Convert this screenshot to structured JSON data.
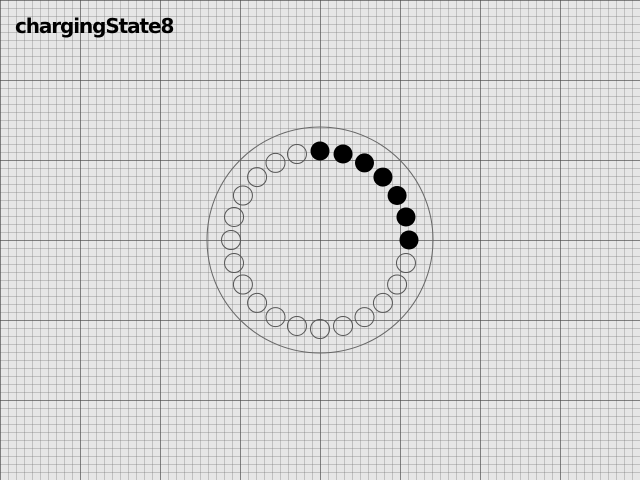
{
  "title": "chargingState8",
  "charging_indicator": {
    "total_dots": 24,
    "filled_dots": 7,
    "filled_color": "#000000",
    "empty_stroke_color": "#555555",
    "ring_color": "#666666",
    "icon": "charging-ring-icon"
  }
}
